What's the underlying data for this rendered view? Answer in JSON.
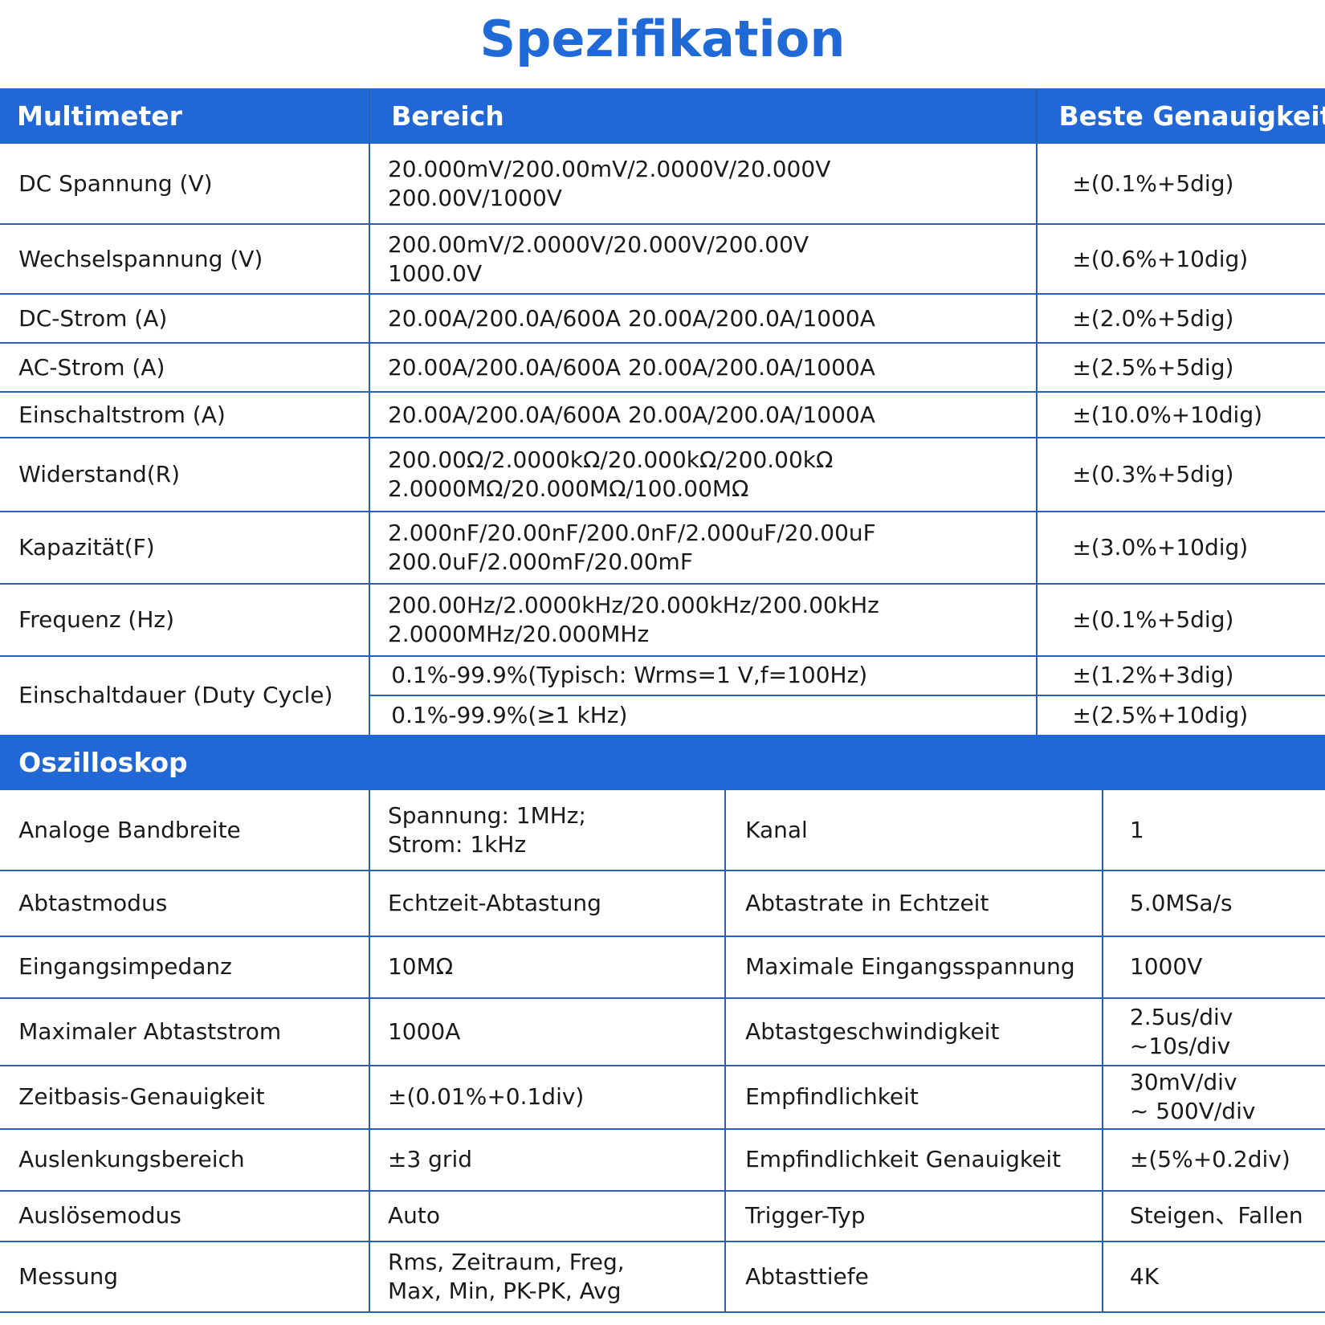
{
  "title": "Spezifikation",
  "multimeter": {
    "header": [
      "Multimeter",
      "Bereich",
      "Beste Genauigkeit"
    ],
    "rows": [
      {
        "label": "DC Spannung (V)",
        "range": [
          "20.000mV/200.00mV/2.0000V/20.000V",
          "200.00V/1000V"
        ],
        "accuracy": "±(0.1%+5dig)"
      },
      {
        "label": "Wechselspannung (V)",
        "range": [
          "200.00mV/2.0000V/20.000V/200.00V",
          "1000.0V"
        ],
        "accuracy": "±(0.6%+10dig)"
      },
      {
        "label": "DC-Strom (A)",
        "range": [
          "20.00A/200.0A/600A 20.00A/200.0A/1000A"
        ],
        "accuracy": "±(2.0%+5dig)"
      },
      {
        "label": "AC-Strom (A)",
        "range": [
          "20.00A/200.0A/600A 20.00A/200.0A/1000A"
        ],
        "accuracy": "±(2.5%+5dig)"
      },
      {
        "label": "Einschaltstrom (A)",
        "range": [
          "20.00A/200.0A/600A 20.00A/200.0A/1000A"
        ],
        "accuracy": "±(10.0%+10dig)"
      },
      {
        "label": "Widerstand(R)",
        "range": [
          "200.00Ω/2.0000kΩ/20.000kΩ/200.00kΩ",
          "2.0000MΩ/20.000MΩ/100.00MΩ"
        ],
        "accuracy": "±(0.3%+5dig)"
      },
      {
        "label": "Kapazität(F)",
        "range": [
          "2.000nF/20.00nF/200.0nF/2.000uF/20.00uF",
          "200.0uF/2.000mF/20.00mF"
        ],
        "accuracy": "±(3.0%+10dig)"
      },
      {
        "label": "Frequenz (Hz)",
        "range": [
          "200.00Hz/2.0000kHz/20.000kHz/200.00kHz",
          "2.0000MHz/20.000MHz"
        ],
        "accuracy": "±(0.1%+5dig)"
      }
    ],
    "duty_cycle": {
      "label": "Einschaltdauer (Duty Cycle)",
      "sub": [
        {
          "range": "0.1%-99.9%(Typisch: Wrms=1 V,f=100Hz)",
          "accuracy": "±(1.2%+3dig)"
        },
        {
          "range": "0.1%-99.9%(≥1 kHz)",
          "accuracy": "±(2.5%+10dig)"
        }
      ]
    }
  },
  "oscilloscope": {
    "header": "Oszilloskop",
    "rows": [
      [
        [
          "Analoge Bandbreite"
        ],
        [
          "Spannung: 1MHz;",
          "Strom: 1kHz"
        ],
        [
          "Kanal"
        ],
        [
          "1"
        ]
      ],
      [
        [
          "Abtastmodus"
        ],
        [
          "Echtzeit-Abtastung"
        ],
        [
          "Abtastrate in Echtzeit"
        ],
        [
          "5.0MSa/s"
        ]
      ],
      [
        [
          "Eingangsimpedanz"
        ],
        [
          "10MΩ"
        ],
        [
          "Maximale Eingangsspannung"
        ],
        [
          "1000V"
        ]
      ],
      [
        [
          "Maximaler Abtaststrom"
        ],
        [
          "1000A"
        ],
        [
          "Abtastgeschwindigkeit"
        ],
        [
          "2.5us/div",
          "~10s/div"
        ]
      ],
      [
        [
          "Zeitbasis-Genauigkeit"
        ],
        [
          "±(0.01%+0.1div)"
        ],
        [
          "Empfindlichkeit"
        ],
        [
          "30mV/div",
          "~ 500V/div"
        ]
      ],
      [
        [
          "Auslenkungsbereich"
        ],
        [
          "±3 grid"
        ],
        [
          "Empfindlichkeit Genauigkeit"
        ],
        [
          "±(5%+0.2div)"
        ]
      ],
      [
        [
          "Auslösemodus"
        ],
        [
          "Auto"
        ],
        [
          "Trigger-Typ"
        ],
        [
          "Steigen、Fallen"
        ]
      ],
      [
        [
          "Messung"
        ],
        [
          "Rms, Zeitraum, Freg,",
          "Max, Min, PK-PK, Avg"
        ],
        [
          "Abtasttiefe"
        ],
        [
          "4K"
        ]
      ]
    ]
  }
}
